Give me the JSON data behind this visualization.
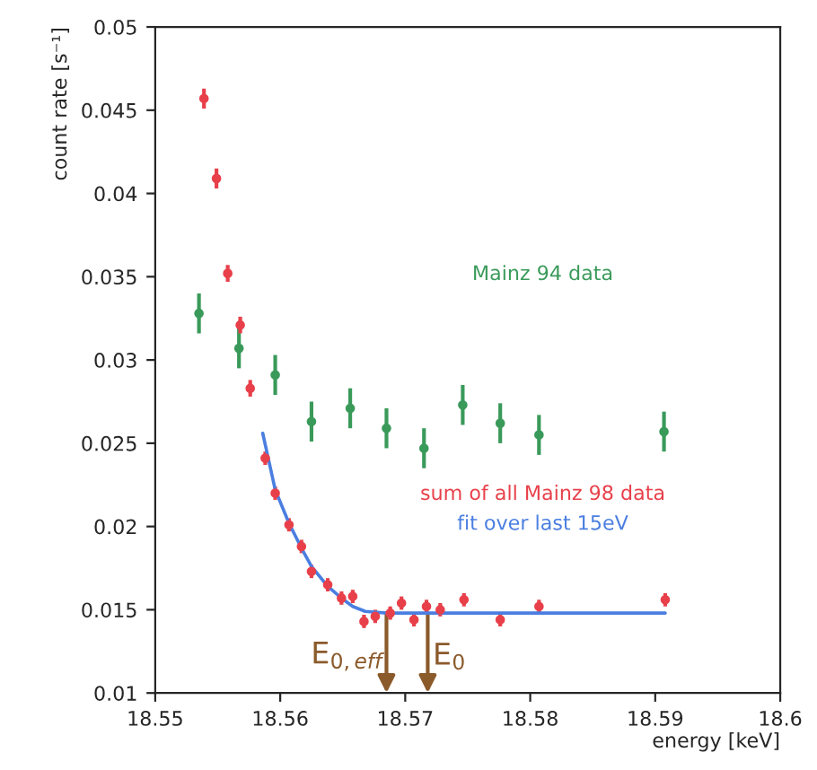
{
  "chart_data": {
    "type": "scatter",
    "xlabel": "energy [keV]",
    "ylabel": "count rate [s⁻¹]",
    "xlim": [
      18.55,
      18.6
    ],
    "xticks": [
      18.55,
      18.56,
      18.57,
      18.58,
      18.59,
      18.6
    ],
    "ylim": [
      0.01,
      0.05
    ],
    "yticks": [
      0.01,
      0.015,
      0.02,
      0.025,
      0.03,
      0.035,
      0.04,
      0.045,
      0.05
    ],
    "grid": false,
    "legend": false,
    "marker": "circle",
    "series": [
      {
        "name": "Mainz 94 data",
        "color": "#3a9a5a",
        "x": [
          18.5535,
          18.5567,
          18.5596,
          18.5625,
          18.5656,
          18.5685,
          18.5715,
          18.5746,
          18.5776,
          18.5807,
          18.5907
        ],
        "values": [
          0.0328,
          0.0307,
          0.0291,
          0.0263,
          0.0271,
          0.0259,
          0.0247,
          0.0273,
          0.0262,
          0.0255,
          0.0257
        ],
        "errors": [
          0.0012,
          0.0012,
          0.0012,
          0.0012,
          0.0012,
          0.0012,
          0.0012,
          0.0012,
          0.0012,
          0.0012,
          0.0012
        ]
      },
      {
        "name": "sum of all Mainz 98 data",
        "color": "#e8404a",
        "x": [
          18.5539,
          18.5549,
          18.5558,
          18.5568,
          18.5576,
          18.5588,
          18.5596,
          18.5607,
          18.5617,
          18.5625,
          18.5638,
          18.5649,
          18.5658,
          18.5667,
          18.5676,
          18.5688,
          18.5697,
          18.5707,
          18.5717,
          18.5728,
          18.5747,
          18.5776,
          18.5807,
          18.5908
        ],
        "values": [
          0.0457,
          0.0409,
          0.0352,
          0.0321,
          0.0283,
          0.0241,
          0.022,
          0.0201,
          0.0188,
          0.0173,
          0.0165,
          0.0157,
          0.0158,
          0.0143,
          0.0146,
          0.0148,
          0.0154,
          0.0144,
          0.0152,
          0.015,
          0.0156,
          0.0144,
          0.0152,
          0.0156
        ],
        "errors": [
          0.0006,
          0.0006,
          0.0005,
          0.0005,
          0.0005,
          0.0004,
          0.0004,
          0.0004,
          0.0004,
          0.0004,
          0.0004,
          0.0004,
          0.0004,
          0.0004,
          0.0004,
          0.0004,
          0.0004,
          0.0004,
          0.0004,
          0.0004,
          0.0004,
          0.0004,
          0.0004,
          0.0004
        ]
      },
      {
        "name": "fit over last 15eV",
        "type": "line",
        "marker": "none",
        "color": "#4a7ee0",
        "x": [
          18.5586,
          18.5596,
          18.5607,
          18.5617,
          18.5625,
          18.5638,
          18.5649,
          18.5658,
          18.5668,
          18.5685,
          18.5908
        ],
        "values": [
          0.0256,
          0.0222,
          0.0202,
          0.0187,
          0.0176,
          0.0164,
          0.0157,
          0.0152,
          0.0149,
          0.0148,
          0.0148
        ]
      }
    ],
    "annotations": [
      {
        "text": "E$_{0,eff}$",
        "x": 18.5685,
        "y": 0.0148
      },
      {
        "text": "E$_{0}$",
        "x": 18.5718,
        "y": 0.0148
      }
    ]
  }
}
